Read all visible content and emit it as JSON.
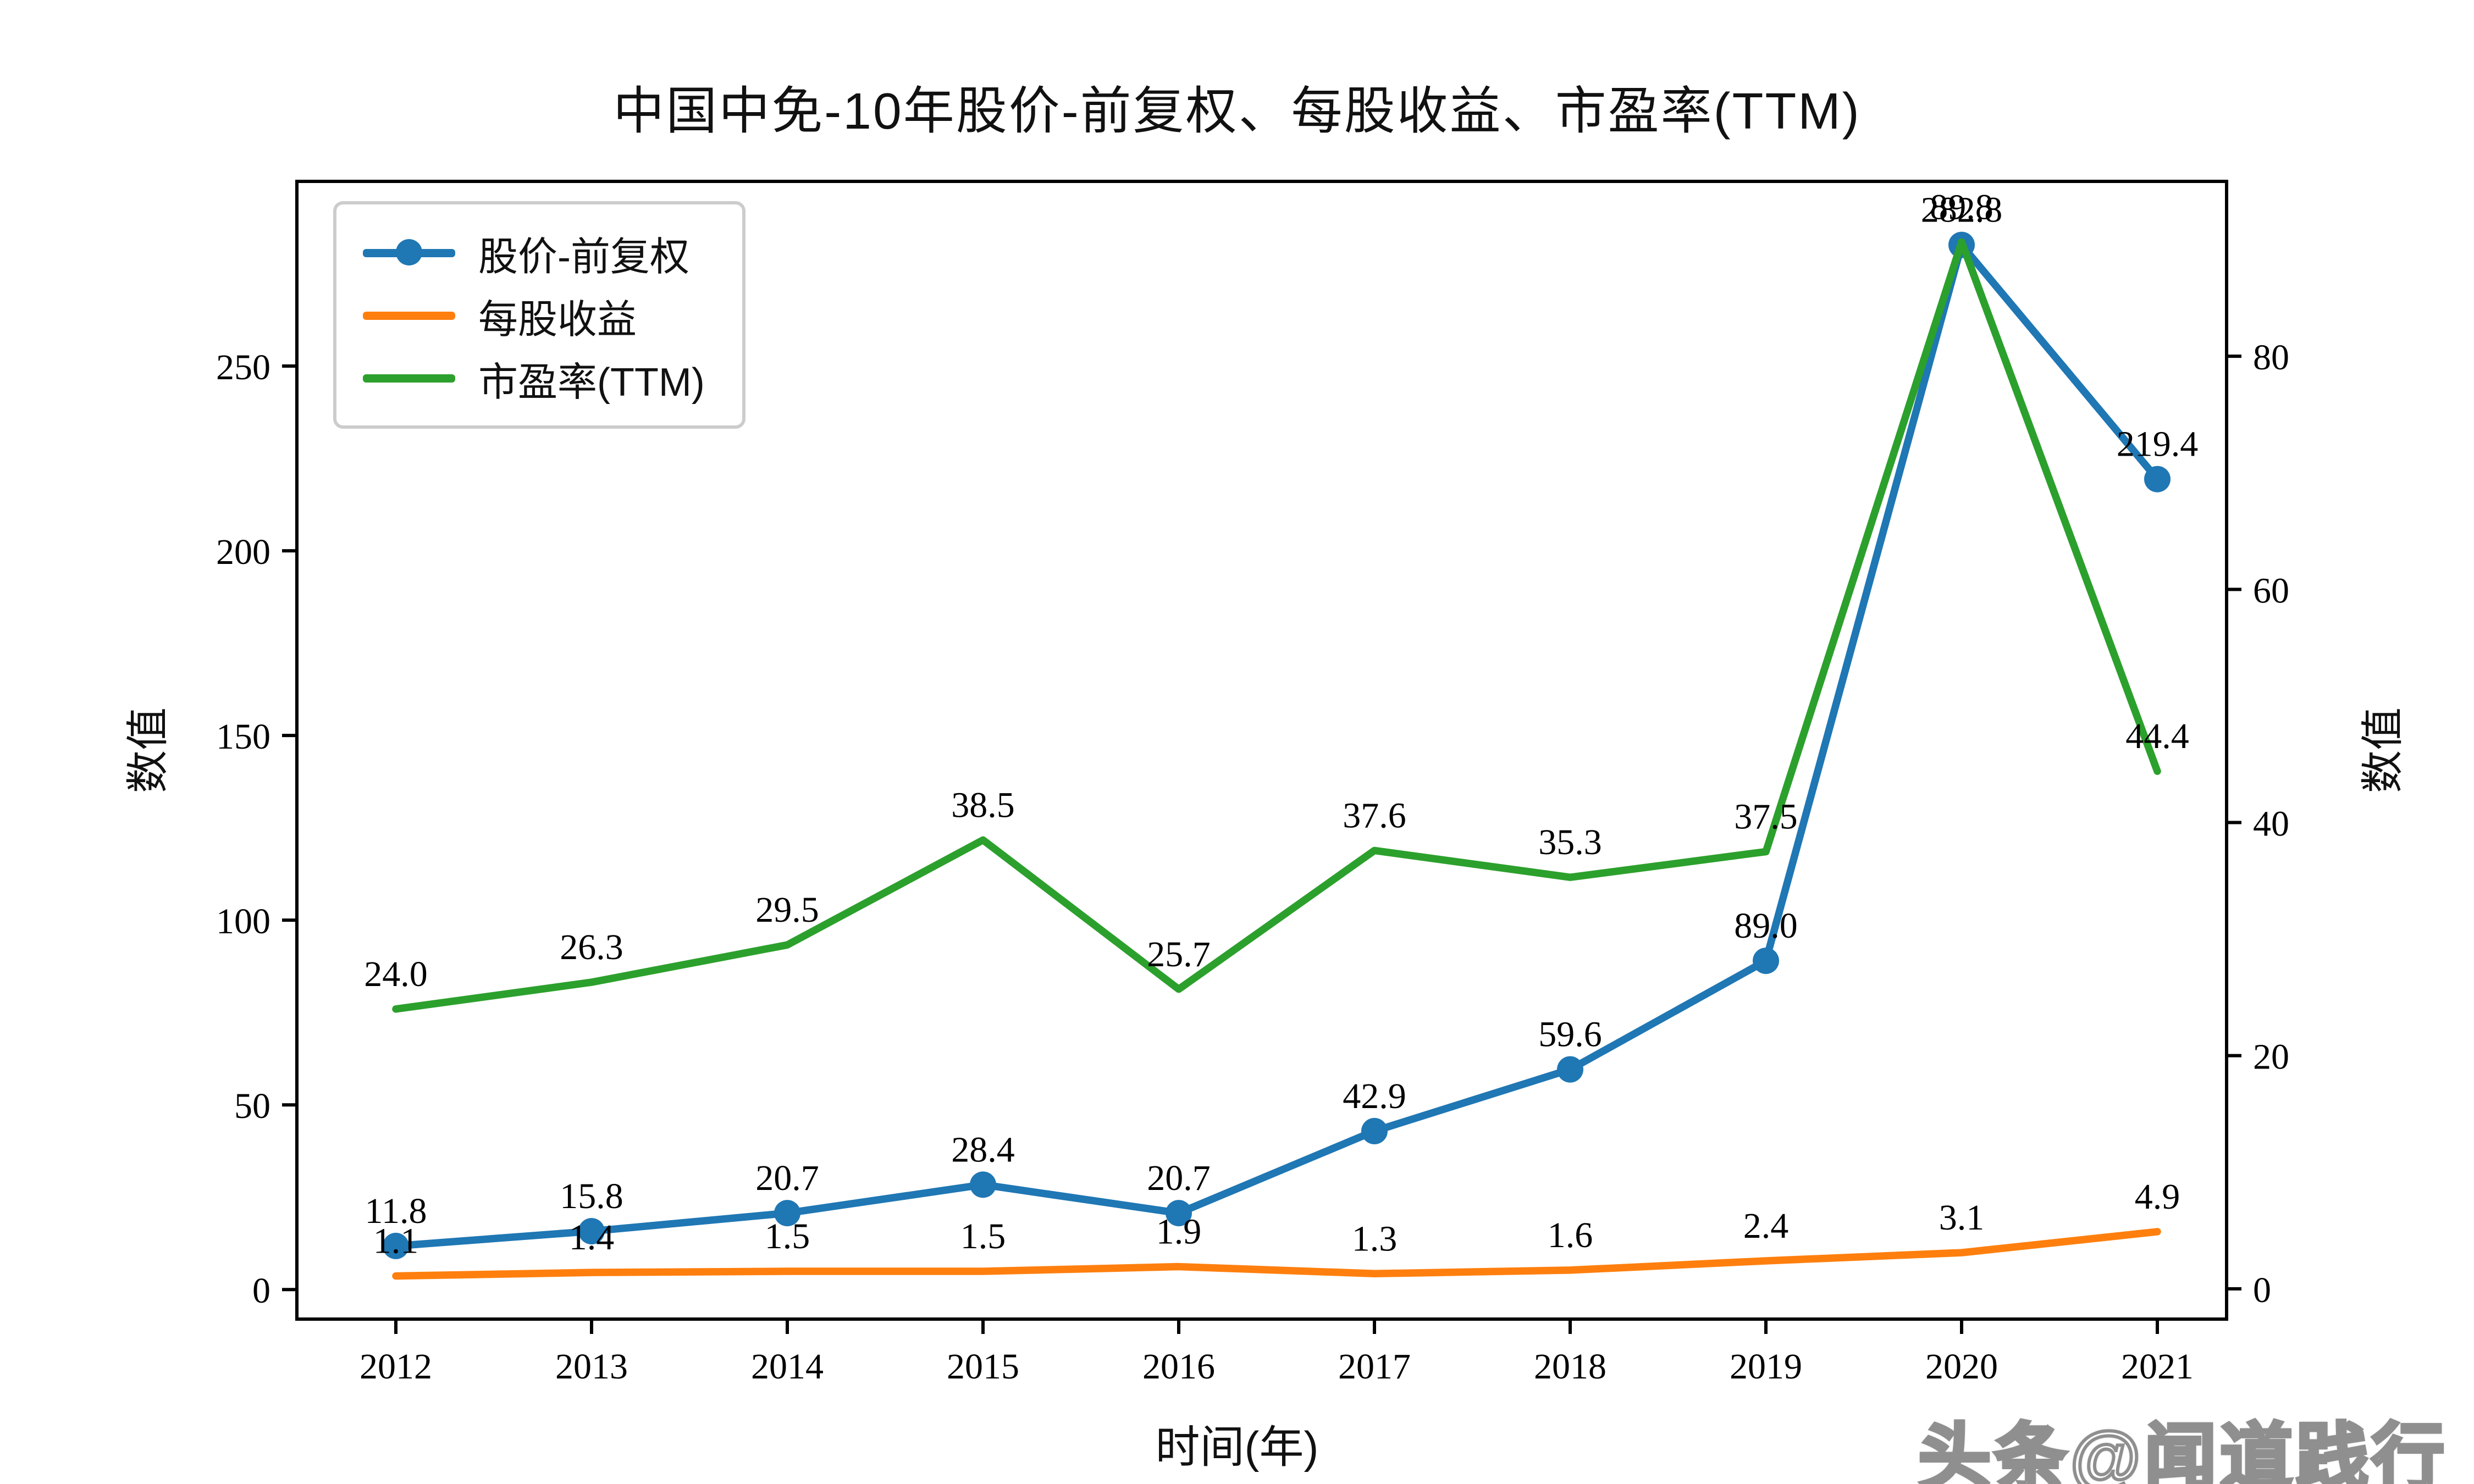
{
  "watermark": {
    "text": "头条@闻道践行"
  },
  "chart_data": {
    "type": "line",
    "title": "中国中免-10年股价-前复权、每股收益、市盈率(TTM)",
    "xlabel": "时间(年)",
    "ylabel_left": "数值",
    "ylabel_right": "数值",
    "grid": false,
    "legend_position": "upper-left",
    "categories": [
      "2012",
      "2013",
      "2014",
      "2015",
      "2016",
      "2017",
      "2018",
      "2019",
      "2020",
      "2021"
    ],
    "left_axis": {
      "ticks": [
        0,
        50,
        100,
        150,
        200,
        250
      ],
      "range": [
        -8,
        300
      ]
    },
    "right_axis": {
      "ticks": [
        0,
        20,
        40,
        60,
        80
      ],
      "range": [
        -2.6,
        95
      ]
    },
    "series": [
      {
        "name": "股价-前复权",
        "color": "#1f77b4",
        "axis": "left",
        "marker": "circle",
        "values": [
          11.8,
          15.8,
          20.7,
          28.4,
          20.7,
          42.9,
          59.6,
          89.0,
          282.8,
          219.4
        ]
      },
      {
        "name": "每股收益",
        "color": "#ff7f0e",
        "axis": "right",
        "marker": "none",
        "values": [
          1.1,
          1.4,
          1.5,
          1.5,
          1.9,
          1.3,
          1.6,
          2.4,
          3.1,
          4.9
        ]
      },
      {
        "name": "市盈率(TTM)",
        "color": "#2ca02c",
        "axis": "right",
        "marker": "none",
        "values": [
          24.0,
          26.3,
          29.5,
          38.5,
          25.7,
          37.6,
          35.3,
          37.5,
          89.8,
          44.4
        ]
      }
    ]
  }
}
